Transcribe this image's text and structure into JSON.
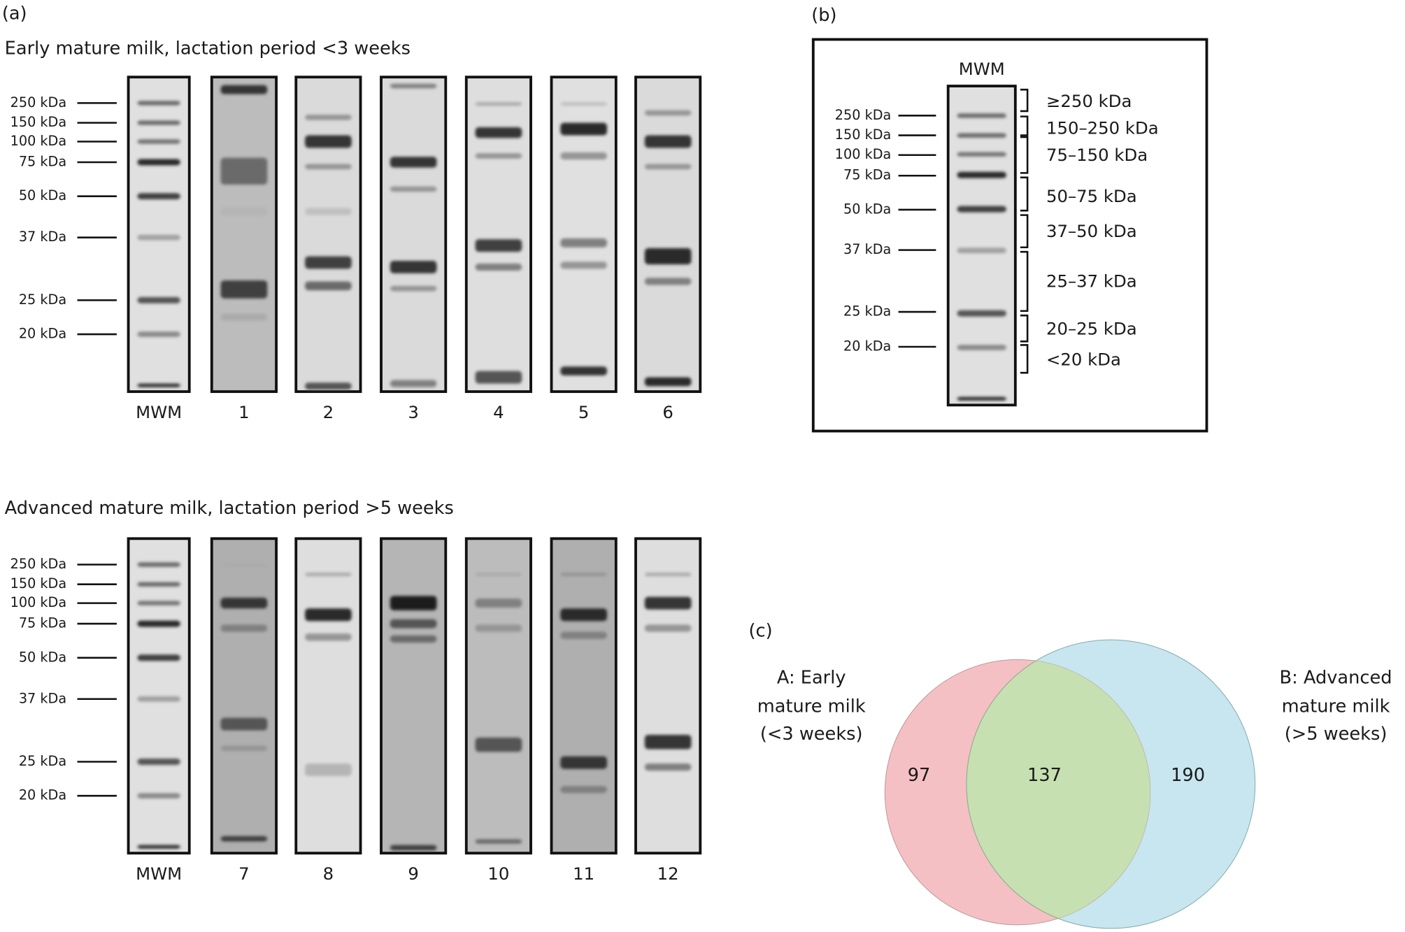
{
  "panel_a": {
    "label": "(a)",
    "early": {
      "title": "Early mature milk, lactation period <3 weeks",
      "markers": [
        "250 kDa",
        "150 kDa",
        "100 kDa",
        "75 kDa",
        "50 kDa",
        "37 kDa",
        "25 kDa",
        "20 kDa"
      ],
      "lanes": [
        "MWM",
        "1",
        "2",
        "3",
        "4",
        "5",
        "6"
      ]
    },
    "advanced": {
      "title": "Advanced mature milk, lactation period >5 weeks",
      "markers": [
        "250 kDa",
        "150 kDa",
        "100 kDa",
        "75 kDa",
        "50 kDa",
        "37 kDa",
        "25 kDa",
        "20 kDa"
      ],
      "lanes": [
        "MWM",
        "7",
        "8",
        "9",
        "10",
        "11",
        "12"
      ]
    }
  },
  "panel_b": {
    "label": "(b)",
    "lane": "MWM",
    "markers": [
      "250 kDa",
      "150 kDa",
      "100 kDa",
      "75 kDa",
      "50 kDa",
      "37 kDa",
      "25 kDa",
      "20 kDa"
    ],
    "ranges": [
      "≥250 kDa",
      "150–250 kDa",
      "75–150 kDa",
      "50–75 kDa",
      "37–50 kDa",
      "25–37 kDa",
      "20–25 kDa",
      "<20 kDa"
    ]
  },
  "panel_c": {
    "label": "(c)",
    "set_a": [
      "A: Early",
      "mature milk",
      "(<3 weeks)"
    ],
    "set_b": [
      "B: Advanced",
      "mature milk",
      "(>5 weeks)"
    ],
    "counts": {
      "a_only": 97,
      "both": 137,
      "b_only": 190
    }
  }
}
